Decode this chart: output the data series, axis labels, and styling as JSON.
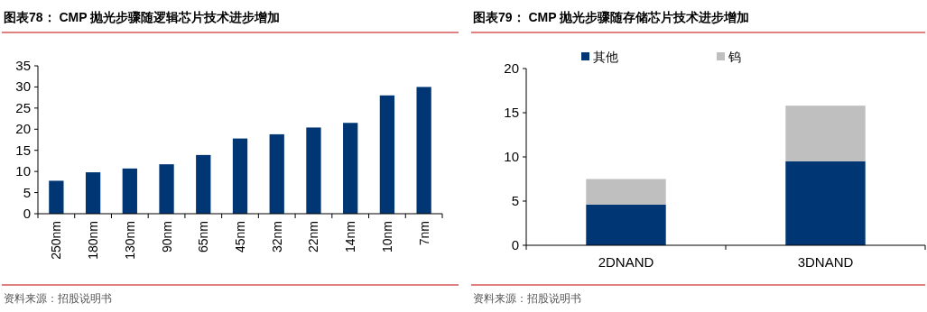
{
  "chart_data": [
    {
      "type": "bar",
      "title": "图表78： CMP 抛光步骤随逻辑芯片技术进步增加",
      "categories": [
        "250nm",
        "180nm",
        "130nm",
        "90nm",
        "65nm",
        "45nm",
        "32nm",
        "22nm",
        "14nm",
        "10nm",
        "7nm"
      ],
      "values": [
        7.8,
        9.8,
        10.7,
        11.7,
        13.9,
        17.8,
        18.8,
        20.4,
        21.5,
        28,
        30
      ],
      "color": "#003673",
      "ylim": [
        0,
        35
      ],
      "yticks": [
        0,
        5,
        10,
        15,
        20,
        25,
        30,
        35
      ],
      "annotations": [
        "资料来源：招股说明书"
      ]
    },
    {
      "type": "bar",
      "title": "图表79： CMP 抛光步骤随存储芯片技术进步增加",
      "categories": [
        "2DNAND",
        "3DNAND"
      ],
      "stacked": true,
      "series": [
        {
          "name": "其他",
          "color": "#003673",
          "values": [
            4.6,
            9.5
          ]
        },
        {
          "name": "钨",
          "color": "#bfbfbf",
          "values": [
            2.9,
            6.3
          ]
        }
      ],
      "ylim": [
        0,
        20
      ],
      "yticks": [
        0,
        5,
        10,
        15,
        20
      ],
      "legend": "top",
      "annotations": [
        "资料来源：招股说明书"
      ]
    }
  ]
}
